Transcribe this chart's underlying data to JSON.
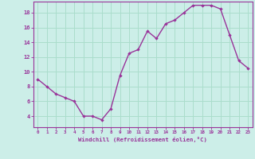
{
  "x": [
    0,
    1,
    2,
    3,
    4,
    5,
    6,
    7,
    8,
    9,
    10,
    11,
    12,
    13,
    14,
    15,
    16,
    17,
    18,
    19,
    20,
    21,
    22,
    23
  ],
  "y": [
    9.0,
    8.0,
    7.0,
    6.5,
    6.0,
    4.0,
    4.0,
    3.5,
    5.0,
    9.5,
    12.5,
    13.0,
    15.5,
    14.5,
    16.5,
    17.0,
    18.0,
    19.0,
    19.0,
    19.0,
    18.5,
    15.0,
    11.5,
    10.5
  ],
  "line_color": "#993399",
  "marker_color": "#993399",
  "background_color": "#cceee8",
  "grid_color": "#aaddcc",
  "xlabel": "Windchill (Refroidissement éolien,°C)",
  "xlabel_color": "#993399",
  "tick_color": "#993399",
  "ylim": [
    2.5,
    19.5
  ],
  "yticks": [
    4,
    6,
    8,
    10,
    12,
    14,
    16,
    18
  ],
  "xticks": [
    0,
    1,
    2,
    3,
    4,
    5,
    6,
    7,
    8,
    9,
    10,
    11,
    12,
    13,
    14,
    15,
    16,
    17,
    18,
    19,
    20,
    21,
    22,
    23
  ],
  "xtick_labels": [
    "0",
    "1",
    "2",
    "3",
    "4",
    "5",
    "6",
    "7",
    "8",
    "9",
    "10",
    "11",
    "12",
    "13",
    "14",
    "15",
    "16",
    "17",
    "18",
    "19",
    "20",
    "21",
    "22",
    "23"
  ],
  "marker_size": 2.2,
  "line_width": 1.0
}
